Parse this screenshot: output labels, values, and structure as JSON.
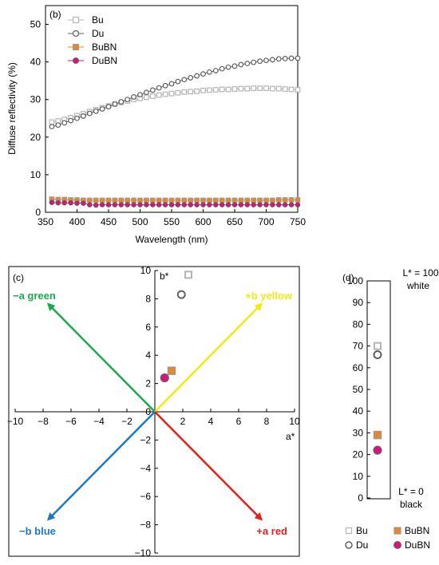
{
  "chart_data": [
    {
      "panel": "(b)",
      "type": "line",
      "xlabel": "Wavelength (nm)",
      "ylabel": "Diffuse reflectivity (%)",
      "xlim": [
        350,
        750
      ],
      "ylim": [
        0,
        55
      ],
      "xticks": [
        "350",
        "400",
        "450",
        "500",
        "550",
        "600",
        "650",
        "700",
        "750"
      ],
      "yticks": [
        "0",
        "10",
        "20",
        "30",
        "40",
        "50"
      ],
      "legend": "top-left",
      "x": [
        360,
        370,
        380,
        390,
        400,
        410,
        420,
        430,
        440,
        450,
        460,
        470,
        480,
        490,
        500,
        510,
        520,
        530,
        540,
        550,
        560,
        570,
        580,
        590,
        600,
        610,
        620,
        630,
        640,
        650,
        660,
        670,
        680,
        690,
        700,
        710,
        720,
        730,
        740,
        750
      ],
      "series": [
        {
          "name": "Bu",
          "marker": "open-square",
          "color": "#b5b5b5",
          "values": [
            24.0,
            24.3,
            24.7,
            25.2,
            25.7,
            26.2,
            26.8,
            27.3,
            27.8,
            28.3,
            28.8,
            29.2,
            29.6,
            30.0,
            30.3,
            30.6,
            30.9,
            31.2,
            31.4,
            31.6,
            31.8,
            32.0,
            32.1,
            32.2,
            32.4,
            32.5,
            32.6,
            32.7,
            32.7,
            32.8,
            32.9,
            32.9,
            33.0,
            33.0,
            33.0,
            32.9,
            32.9,
            32.8,
            32.7,
            32.6
          ]
        },
        {
          "name": "Du",
          "marker": "open-circle",
          "color": "#606060",
          "values": [
            22.8,
            23.2,
            23.8,
            24.4,
            25.0,
            25.6,
            26.3,
            26.9,
            27.5,
            28.1,
            28.8,
            29.4,
            30.0,
            30.7,
            31.3,
            31.9,
            32.5,
            33.1,
            33.7,
            34.2,
            34.8,
            35.3,
            35.8,
            36.3,
            36.8,
            37.3,
            37.7,
            38.2,
            38.6,
            38.9,
            39.3,
            39.6,
            39.9,
            40.2,
            40.4,
            40.6,
            40.8,
            40.9,
            41.0,
            41.0
          ]
        },
        {
          "name": "BuBN",
          "marker": "filled-square",
          "color": "#e8862a",
          "values": [
            3.5,
            3.4,
            3.4,
            3.3,
            3.3,
            3.2,
            3.2,
            3.2,
            3.2,
            3.2,
            3.2,
            3.2,
            3.2,
            3.2,
            3.2,
            3.2,
            3.2,
            3.2,
            3.2,
            3.2,
            3.2,
            3.2,
            3.2,
            3.2,
            3.2,
            3.2,
            3.2,
            3.2,
            3.2,
            3.2,
            3.2,
            3.2,
            3.2,
            3.2,
            3.2,
            3.2,
            3.3,
            3.3,
            3.3,
            3.3
          ]
        },
        {
          "name": "DuBN",
          "marker": "filled-circle",
          "color": "#d4177a",
          "values": [
            2.6,
            2.5,
            2.5,
            2.5,
            2.4,
            2.4,
            2.0,
            1.9,
            2.0,
            2.0,
            2.0,
            2.0,
            2.0,
            2.0,
            2.0,
            2.0,
            2.0,
            2.0,
            2.0,
            2.0,
            2.0,
            2.0,
            2.0,
            2.0,
            2.0,
            2.0,
            2.0,
            2.0,
            2.0,
            2.0,
            2.0,
            2.0,
            2.0,
            2.0,
            2.0,
            2.0,
            2.0,
            2.0,
            2.0,
            2.0
          ]
        }
      ]
    },
    {
      "panel": "(c)",
      "type": "scatter",
      "xlabel": "a*",
      "ylabel": "b*",
      "xlim": [
        -10,
        10
      ],
      "ylim": [
        -10,
        10
      ],
      "xticks": [
        "−10",
        "−8",
        "−6",
        "−4",
        "−2",
        "0",
        "2",
        "4",
        "6",
        "8",
        "10"
      ],
      "yticks": [
        "−10",
        "−8",
        "−6",
        "−4",
        "−2",
        "0",
        "2",
        "4",
        "6",
        "8",
        "10"
      ],
      "arrows": [
        {
          "label": "−a green",
          "color": "#1aab4b",
          "to": [
            -7.6,
            7.6
          ]
        },
        {
          "label": "+b yellow",
          "color": "#f2ea12",
          "to": [
            7.6,
            7.6
          ]
        },
        {
          "label": "−b blue",
          "color": "#1f78c4",
          "to": [
            -7.6,
            -7.6
          ]
        },
        {
          "label": "+a red",
          "color": "#e5211b",
          "to": [
            7.6,
            -7.6
          ]
        }
      ],
      "points": [
        {
          "name": "Bu",
          "a": 2.4,
          "b": 9.7
        },
        {
          "name": "Du",
          "a": 1.9,
          "b": 8.3
        },
        {
          "name": "BuBN",
          "a": 1.2,
          "b": 2.9
        },
        {
          "name": "DuBN",
          "a": 0.7,
          "b": 2.4
        }
      ]
    },
    {
      "panel": "(d)",
      "type": "scatter",
      "ylabel": "L*",
      "ylim": [
        0,
        100
      ],
      "yticks": [
        "0",
        "10",
        "20",
        "30",
        "40",
        "50",
        "60",
        "70",
        "80",
        "90",
        "100"
      ],
      "top_label": [
        "L* = 100",
        "white"
      ],
      "bottom_label": [
        "L* = 0",
        "black"
      ],
      "points": [
        {
          "name": "Bu",
          "L": 70
        },
        {
          "name": "Du",
          "L": 66
        },
        {
          "name": "BuBN",
          "L": 29
        },
        {
          "name": "DuBN",
          "L": 22
        }
      ],
      "legend": [
        "Bu",
        "BuBN",
        "Du",
        "DuBN"
      ]
    }
  ]
}
